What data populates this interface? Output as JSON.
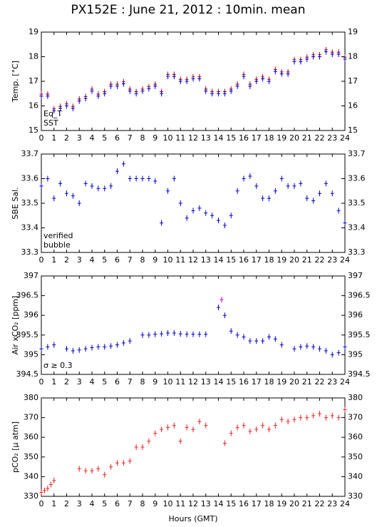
{
  "chart_data": [
    {
      "type": "scatter",
      "title": "PX152E : June 21, 2012 : 10min. mean",
      "ylabel": "Temp. [°C]",
      "xlim": [
        0,
        24
      ],
      "xticks": [
        0,
        1,
        2,
        3,
        4,
        5,
        6,
        7,
        8,
        9,
        10,
        11,
        12,
        13,
        14,
        15,
        16,
        17,
        18,
        19,
        20,
        21,
        22,
        23,
        24
      ],
      "ylim": [
        15,
        19
      ],
      "yticks": [
        15,
        16,
        17,
        18,
        19
      ],
      "legend": "lower left",
      "series": [
        {
          "name": "Eq_T",
          "color": "#cc0000",
          "x": [
            0,
            0.5,
            1,
            1.5,
            2,
            2.5,
            3,
            3.5,
            4,
            4.5,
            5,
            5.5,
            6,
            6.5,
            7,
            7.5,
            8,
            8.5,
            9,
            9.5,
            10,
            10.5,
            11,
            11.5,
            12,
            12.5,
            13,
            13.5,
            14,
            14.5,
            15,
            15.5,
            16,
            16.5,
            17,
            17.5,
            18,
            18.5,
            19,
            19.5,
            20,
            20.5,
            21,
            21.5,
            22,
            22.5,
            23,
            23.5,
            24
          ],
          "values": [
            16.48,
            16.48,
            15.88,
            15.98,
            16.08,
            15.98,
            16.28,
            16.38,
            16.68,
            16.48,
            16.58,
            16.88,
            16.88,
            16.98,
            16.68,
            16.58,
            16.68,
            16.78,
            16.88,
            16.58,
            17.28,
            17.28,
            17.08,
            17.08,
            17.18,
            17.18,
            16.68,
            16.58,
            16.58,
            16.58,
            16.68,
            16.88,
            17.28,
            16.88,
            17.08,
            17.18,
            17.08,
            17.48,
            17.38,
            17.38,
            17.88,
            17.88,
            17.98,
            18.08,
            18.08,
            18.28,
            18.18,
            18.18,
            17.98
          ]
        },
        {
          "name": "SST",
          "color": "#0000cc",
          "x": [
            0,
            0.5,
            1,
            1.5,
            2,
            2.5,
            3,
            3.5,
            4,
            4.5,
            5,
            5.5,
            6,
            6.5,
            7,
            7.5,
            8,
            8.5,
            9,
            9.5,
            10,
            10.5,
            11,
            11.5,
            12,
            12.5,
            13,
            13.5,
            14,
            14.5,
            15,
            15.5,
            16,
            16.5,
            17,
            17.5,
            18,
            18.5,
            19,
            19.5,
            20,
            20.5,
            21,
            21.5,
            22,
            22.5,
            23,
            23.5,
            24
          ],
          "values": [
            16.4,
            16.4,
            15.8,
            15.9,
            16.0,
            15.9,
            16.2,
            16.3,
            16.6,
            16.4,
            16.5,
            16.8,
            16.8,
            16.9,
            16.6,
            16.5,
            16.6,
            16.7,
            16.8,
            16.5,
            17.2,
            17.2,
            17.0,
            17.0,
            17.1,
            17.1,
            16.6,
            16.5,
            16.5,
            16.5,
            16.6,
            16.8,
            17.2,
            16.8,
            17.0,
            17.1,
            17.0,
            17.4,
            17.3,
            17.3,
            17.8,
            17.8,
            17.9,
            18.0,
            18.0,
            18.2,
            18.1,
            18.1,
            17.9
          ]
        }
      ]
    },
    {
      "type": "scatter",
      "ylabel": "SBE Sal.",
      "xlim": [
        0,
        24
      ],
      "xticks": [
        0,
        1,
        2,
        3,
        4,
        5,
        6,
        7,
        8,
        9,
        10,
        11,
        12,
        13,
        14,
        15,
        16,
        17,
        18,
        19,
        20,
        21,
        22,
        23,
        24
      ],
      "ylim": [
        33.3,
        33.7
      ],
      "yticks": [
        33.3,
        33.4,
        33.5,
        33.6,
        33.7
      ],
      "legend": "lower left",
      "series": [
        {
          "name": "verified",
          "color": "#0000cc",
          "x": [
            0,
            0.5,
            1,
            1.5,
            2,
            2.5,
            3,
            3.5,
            4,
            4.5,
            5,
            5.5,
            6,
            6.5,
            7,
            7.5,
            8,
            8.5,
            9,
            9.5,
            10,
            10.5,
            11,
            11.5,
            12,
            12.5,
            13,
            13.5,
            14,
            14.5,
            15,
            15.5,
            16,
            16.5,
            17,
            17.5,
            18,
            18.5,
            19,
            19.5,
            20,
            20.5,
            21,
            21.5,
            22,
            22.5,
            23,
            23.5,
            24
          ],
          "values": [
            33.57,
            33.6,
            33.52,
            33.58,
            33.54,
            33.53,
            33.5,
            33.58,
            33.57,
            33.56,
            33.56,
            33.57,
            33.63,
            33.66,
            33.6,
            33.6,
            33.6,
            33.6,
            33.59,
            33.42,
            33.55,
            33.6,
            33.5,
            33.44,
            33.47,
            33.48,
            33.46,
            33.45,
            33.43,
            33.41,
            33.45,
            33.55,
            33.6,
            33.61,
            33.57,
            33.52,
            33.52,
            33.55,
            33.6,
            33.57,
            33.57,
            33.58,
            33.52,
            33.51,
            33.54,
            33.58,
            33.54,
            33.47,
            33.42
          ]
        },
        {
          "name": "bubble",
          "color": "#cc00cc",
          "x": [],
          "values": []
        }
      ]
    },
    {
      "type": "scatter",
      "ylabel": "Air xCO₂ [ppm]",
      "annotation": "σ ≥ 0.3",
      "annotation_color": "#cc00cc",
      "xlim": [
        0,
        24
      ],
      "xticks": [
        0,
        1,
        2,
        3,
        4,
        5,
        6,
        7,
        8,
        9,
        10,
        11,
        12,
        13,
        14,
        15,
        16,
        17,
        18,
        19,
        20,
        21,
        22,
        23,
        24
      ],
      "ylim": [
        394.5,
        397
      ],
      "yticks": [
        394.5,
        395,
        395.5,
        396,
        396.5,
        397
      ],
      "series": [
        {
          "name": "Air xCO₂",
          "color": "#0000cc",
          "x": [
            0,
            0.5,
            1,
            2,
            2.5,
            3,
            3.5,
            4,
            4.5,
            5,
            5.5,
            6,
            6.5,
            7,
            8,
            8.5,
            9,
            9.5,
            10,
            10.5,
            11,
            11.5,
            12,
            12.5,
            13,
            14,
            14.5,
            15,
            15.5,
            16,
            16.5,
            17,
            17.5,
            18,
            18.5,
            19,
            20,
            20.5,
            21,
            21.5,
            22,
            22.5,
            23,
            23.5,
            24
          ],
          "values": [
            395.15,
            395.2,
            395.25,
            395.15,
            395.1,
            395.12,
            395.15,
            395.18,
            395.2,
            395.2,
            395.22,
            395.25,
            395.3,
            395.35,
            395.5,
            395.5,
            395.52,
            395.53,
            395.55,
            395.55,
            395.53,
            395.52,
            395.52,
            395.52,
            395.52,
            396.2,
            396.0,
            395.6,
            395.5,
            395.45,
            395.35,
            395.35,
            395.35,
            395.45,
            395.4,
            395.25,
            395.15,
            395.2,
            395.22,
            395.2,
            395.15,
            395.1,
            395.0,
            395.05,
            395.2
          ]
        },
        {
          "name": "σ ≥ 0.3",
          "color": "#cc00cc",
          "x": [
            14.25
          ],
          "values": [
            396.4
          ]
        }
      ]
    },
    {
      "type": "scatter",
      "ylabel": "pCO₂ [μ atm]",
      "xlabel": "Hours (GMT)",
      "xlim": [
        0,
        24
      ],
      "xticks": [
        0,
        1,
        2,
        3,
        4,
        5,
        6,
        7,
        8,
        9,
        10,
        11,
        12,
        13,
        14,
        15,
        16,
        17,
        18,
        19,
        20,
        21,
        22,
        23,
        24
      ],
      "ylim": [
        330,
        380
      ],
      "yticks": [
        330,
        340,
        350,
        360,
        370,
        380
      ],
      "series": [
        {
          "name": "pCO₂",
          "color": "#ee2222",
          "x": [
            0,
            0.25,
            0.5,
            0.75,
            1,
            3,
            3.5,
            4,
            4.5,
            5,
            5.5,
            6,
            6.5,
            7,
            7.5,
            8,
            8.5,
            9,
            9.5,
            10,
            10.5,
            11,
            11.5,
            12,
            12.5,
            13,
            14.5,
            15,
            15.5,
            16,
            16.5,
            17,
            17.5,
            18,
            18.5,
            19,
            19.5,
            20,
            20.5,
            21,
            21.5,
            22,
            22.5,
            23,
            23.5,
            24
          ],
          "values": [
            332,
            333,
            334,
            336,
            338,
            344,
            343,
            343,
            344,
            341,
            345,
            347,
            347,
            348,
            355,
            355,
            358,
            362,
            364,
            365,
            366,
            358,
            365,
            364,
            368,
            366,
            357,
            362,
            365,
            366,
            363,
            364,
            366,
            364,
            366,
            369,
            368,
            369,
            370,
            370,
            371,
            372,
            370,
            371,
            370,
            374
          ]
        }
      ]
    }
  ]
}
